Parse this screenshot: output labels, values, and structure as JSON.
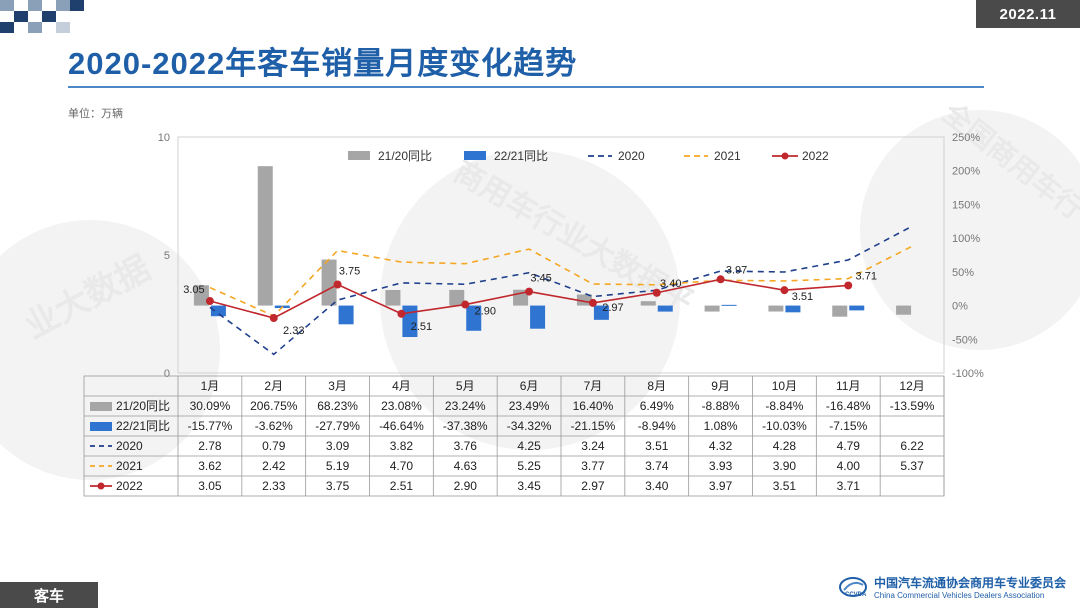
{
  "header": {
    "date": "2022.11",
    "title": "2020-2022年客车销量月度变化趋势",
    "unit": "单位：万辆"
  },
  "watermark": {
    "text_left": "业大数据",
    "text_center": "商用车行业大数据平",
    "text_right": "全国商用车行"
  },
  "footer": {
    "tag": "客车",
    "org_cn": "中国汽车流通协会商用车专业委员会",
    "org_en": "China Commercial Vehicles Dealers Association"
  },
  "colors": {
    "title": "#1f5fa8",
    "bar_2120": "#a6a6a6",
    "bar_2221": "#2f74d0",
    "line_2020": "#1f3f8c",
    "line_2021": "#f5a623",
    "line_2022": "#c0282d"
  },
  "chart_data": {
    "type": "bar",
    "categories": [
      "1月",
      "2月",
      "3月",
      "4月",
      "5月",
      "6月",
      "7月",
      "8月",
      "9月",
      "10月",
      "11月",
      "12月"
    ],
    "left_axis": {
      "ylim": [
        0,
        10
      ],
      "ticks": [
        0,
        5,
        10
      ]
    },
    "right_axis": {
      "ylim": [
        -100,
        250
      ],
      "ticks": [
        "-100%",
        "-50%",
        "0%",
        "50%",
        "100%",
        "150%",
        "200%",
        "250%"
      ]
    },
    "legend_position": "top",
    "series": [
      {
        "name": "21/20同比",
        "kind": "bar",
        "axis": "right",
        "values": [
          30.09,
          206.75,
          68.23,
          23.08,
          23.24,
          23.49,
          16.4,
          6.49,
          -8.88,
          -8.84,
          -16.48,
          -13.59
        ],
        "labels": [
          "30.09%",
          "206.75%",
          "68.23%",
          "23.08%",
          "23.24%",
          "23.49%",
          "16.40%",
          "6.49%",
          "-8.88%",
          "-8.84%",
          "-16.48%",
          "-13.59%"
        ]
      },
      {
        "name": "22/21同比",
        "kind": "bar",
        "axis": "right",
        "values": [
          -15.77,
          -3.62,
          -27.79,
          -46.64,
          -37.38,
          -34.32,
          -21.15,
          -8.94,
          1.08,
          -10.03,
          -7.15,
          null
        ],
        "labels": [
          "-15.77%",
          "-3.62%",
          "-27.79%",
          "-46.64%",
          "-37.38%",
          "-34.32%",
          "-21.15%",
          "-8.94%",
          "1.08%",
          "-10.03%",
          "-7.15%",
          ""
        ]
      },
      {
        "name": "2020",
        "kind": "line-dashed",
        "axis": "left",
        "values": [
          2.78,
          0.79,
          3.09,
          3.82,
          3.76,
          4.25,
          3.24,
          3.51,
          4.32,
          4.28,
          4.79,
          6.22
        ],
        "labels": [
          "2.78",
          "0.79",
          "3.09",
          "3.82",
          "3.76",
          "4.25",
          "3.24",
          "3.51",
          "4.32",
          "4.28",
          "4.79",
          "6.22"
        ]
      },
      {
        "name": "2021",
        "kind": "line-dashed",
        "axis": "left",
        "values": [
          3.62,
          2.42,
          5.19,
          4.7,
          4.63,
          5.25,
          3.77,
          3.74,
          3.93,
          3.9,
          4.0,
          5.37
        ],
        "labels": [
          "3.62",
          "2.42",
          "5.19",
          "4.70",
          "4.63",
          "5.25",
          "3.77",
          "3.74",
          "3.93",
          "3.90",
          "4.00",
          "5.37"
        ]
      },
      {
        "name": "2022",
        "kind": "line-marker",
        "axis": "left",
        "values": [
          3.05,
          2.33,
          3.75,
          2.51,
          2.9,
          3.45,
          2.97,
          3.4,
          3.97,
          3.51,
          3.71,
          null
        ],
        "labels": [
          "3.05",
          "2.33",
          "3.75",
          "2.51",
          "2.90",
          "3.45",
          "2.97",
          "3.40",
          "3.97",
          "3.51",
          "3.71",
          ""
        ]
      }
    ]
  }
}
